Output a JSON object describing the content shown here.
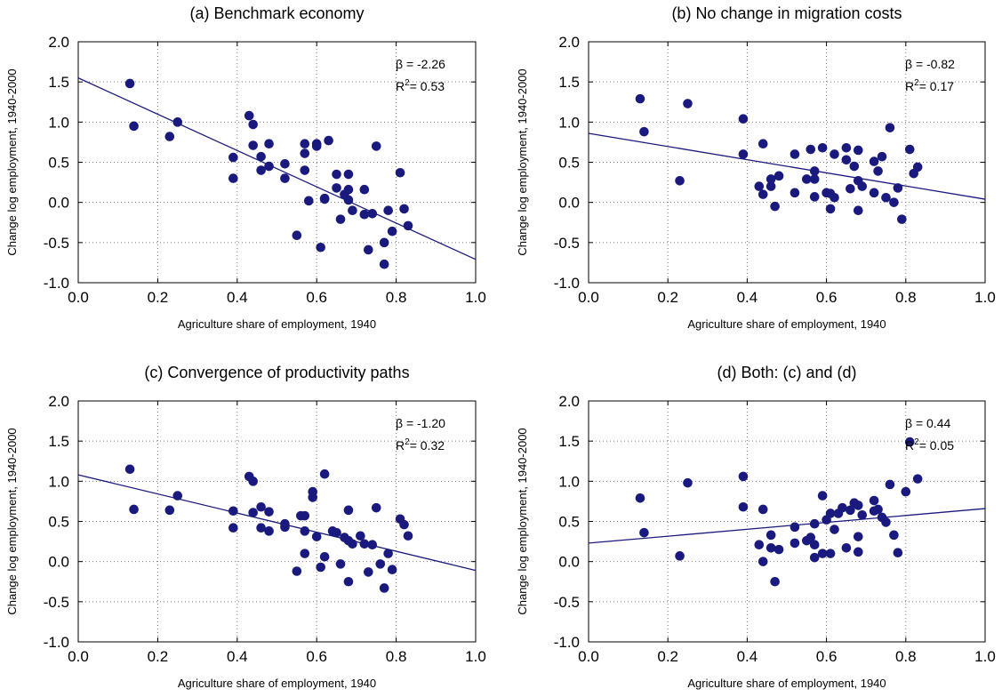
{
  "chart_data": [
    {
      "type": "scatter",
      "title": "(a) Benchmark economy",
      "xlabel": "Agriculture share of employment, 1940",
      "ylabel": "Change log employment, 1940-2000",
      "xlim": [
        0.0,
        1.0
      ],
      "ylim": [
        -1.0,
        2.0
      ],
      "xticks": [
        "0.0",
        "0.2",
        "0.4",
        "0.6",
        "0.8",
        "1.0"
      ],
      "yticks": [
        "-1.0",
        "-0.5",
        "0.0",
        "0.5",
        "1.0",
        "1.5",
        "2.0"
      ],
      "grid": true,
      "stats": {
        "beta": "-2.26",
        "r2": "0.53"
      },
      "fit": {
        "x": [
          0.0,
          1.0
        ],
        "y": [
          1.55,
          -0.71
        ]
      },
      "points": [
        [
          0.13,
          1.48
        ],
        [
          0.14,
          0.95
        ],
        [
          0.23,
          0.82
        ],
        [
          0.25,
          1.0
        ],
        [
          0.39,
          0.56
        ],
        [
          0.39,
          0.3
        ],
        [
          0.43,
          1.08
        ],
        [
          0.44,
          0.97
        ],
        [
          0.44,
          0.71
        ],
        [
          0.46,
          0.57
        ],
        [
          0.46,
          0.4
        ],
        [
          0.48,
          0.73
        ],
        [
          0.48,
          0.45
        ],
        [
          0.52,
          0.48
        ],
        [
          0.52,
          0.3
        ],
        [
          0.55,
          -0.41
        ],
        [
          0.57,
          0.73
        ],
        [
          0.57,
          0.61
        ],
        [
          0.57,
          0.4
        ],
        [
          0.58,
          0.02
        ],
        [
          0.6,
          0.73
        ],
        [
          0.6,
          0.7
        ],
        [
          0.61,
          -0.56
        ],
        [
          0.62,
          0.04
        ],
        [
          0.62,
          0.05
        ],
        [
          0.63,
          0.77
        ],
        [
          0.65,
          0.35
        ],
        [
          0.65,
          0.18
        ],
        [
          0.66,
          -0.21
        ],
        [
          0.67,
          0.1
        ],
        [
          0.68,
          0.35
        ],
        [
          0.68,
          0.16
        ],
        [
          0.68,
          0.03
        ],
        [
          0.69,
          -0.1
        ],
        [
          0.72,
          0.16
        ],
        [
          0.72,
          -0.15
        ],
        [
          0.73,
          -0.59
        ],
        [
          0.74,
          -0.14
        ],
        [
          0.75,
          0.7
        ],
        [
          0.77,
          -0.5
        ],
        [
          0.77,
          -0.77
        ],
        [
          0.78,
          -0.1
        ],
        [
          0.79,
          -0.36
        ],
        [
          0.81,
          0.37
        ],
        [
          0.82,
          -0.08
        ],
        [
          0.83,
          -0.29
        ]
      ]
    },
    {
      "type": "scatter",
      "title": "(b) No change in migration costs",
      "xlabel": "Agriculture share of employment, 1940",
      "ylabel": "Change log employment, 1940-2000",
      "xlim": [
        0.0,
        1.0
      ],
      "ylim": [
        -1.0,
        2.0
      ],
      "xticks": [
        "0.0",
        "0.2",
        "0.4",
        "0.6",
        "0.8",
        "1.0"
      ],
      "yticks": [
        "-1.0",
        "-0.5",
        "0.0",
        "0.5",
        "1.0",
        "1.5",
        "2.0"
      ],
      "grid": true,
      "stats": {
        "beta": "-0.82",
        "r2": "0.17"
      },
      "fit": {
        "x": [
          0.0,
          1.0
        ],
        "y": [
          0.86,
          0.04
        ]
      },
      "points": [
        [
          0.13,
          1.29
        ],
        [
          0.14,
          0.88
        ],
        [
          0.23,
          0.27
        ],
        [
          0.25,
          1.23
        ],
        [
          0.39,
          1.04
        ],
        [
          0.39,
          0.6
        ],
        [
          0.43,
          0.2
        ],
        [
          0.44,
          0.73
        ],
        [
          0.44,
          0.1
        ],
        [
          0.46,
          0.29
        ],
        [
          0.46,
          0.2
        ],
        [
          0.47,
          -0.05
        ],
        [
          0.48,
          0.33
        ],
        [
          0.52,
          0.6
        ],
        [
          0.52,
          0.12
        ],
        [
          0.55,
          0.29
        ],
        [
          0.56,
          0.66
        ],
        [
          0.57,
          0.39
        ],
        [
          0.57,
          0.29
        ],
        [
          0.57,
          0.07
        ],
        [
          0.59,
          0.68
        ],
        [
          0.6,
          0.12
        ],
        [
          0.61,
          0.11
        ],
        [
          0.61,
          -0.08
        ],
        [
          0.62,
          0.6
        ],
        [
          0.62,
          0.06
        ],
        [
          0.65,
          0.68
        ],
        [
          0.65,
          0.53
        ],
        [
          0.66,
          0.17
        ],
        [
          0.67,
          0.45
        ],
        [
          0.68,
          0.65
        ],
        [
          0.68,
          0.27
        ],
        [
          0.68,
          -0.1
        ],
        [
          0.69,
          0.2
        ],
        [
          0.72,
          0.51
        ],
        [
          0.72,
          0.12
        ],
        [
          0.73,
          0.39
        ],
        [
          0.74,
          0.57
        ],
        [
          0.75,
          0.06
        ],
        [
          0.76,
          0.93
        ],
        [
          0.77,
          0.0
        ],
        [
          0.78,
          0.18
        ],
        [
          0.79,
          -0.21
        ],
        [
          0.81,
          0.66
        ],
        [
          0.82,
          0.36
        ],
        [
          0.83,
          0.44
        ]
      ]
    },
    {
      "type": "scatter",
      "title": "(c) Convergence of productivity paths",
      "xlabel": "Agriculture share of employment, 1940",
      "ylabel": "Change log employment, 1940-2000",
      "xlim": [
        0.0,
        1.0
      ],
      "ylim": [
        -1.0,
        2.0
      ],
      "xticks": [
        "0.0",
        "0.2",
        "0.4",
        "0.6",
        "0.8",
        "1.0"
      ],
      "yticks": [
        "-1.0",
        "-0.5",
        "0.0",
        "0.5",
        "1.0",
        "1.5",
        "2.0"
      ],
      "grid": true,
      "stats": {
        "beta": "-1.20",
        "r2": "0.32"
      },
      "fit": {
        "x": [
          0.0,
          1.0
        ],
        "y": [
          1.08,
          -0.11
        ]
      },
      "points": [
        [
          0.13,
          1.15
        ],
        [
          0.14,
          0.65
        ],
        [
          0.23,
          0.64
        ],
        [
          0.25,
          0.82
        ],
        [
          0.39,
          0.63
        ],
        [
          0.39,
          0.42
        ],
        [
          0.43,
          1.06
        ],
        [
          0.44,
          1.0
        ],
        [
          0.44,
          0.61
        ],
        [
          0.46,
          0.68
        ],
        [
          0.46,
          0.42
        ],
        [
          0.48,
          0.62
        ],
        [
          0.48,
          0.38
        ],
        [
          0.52,
          0.47
        ],
        [
          0.52,
          0.43
        ],
        [
          0.55,
          -0.12
        ],
        [
          0.56,
          0.57
        ],
        [
          0.57,
          0.57
        ],
        [
          0.57,
          0.38
        ],
        [
          0.57,
          0.1
        ],
        [
          0.59,
          0.87
        ],
        [
          0.59,
          0.8
        ],
        [
          0.6,
          0.31
        ],
        [
          0.61,
          -0.07
        ],
        [
          0.62,
          1.09
        ],
        [
          0.62,
          0.06
        ],
        [
          0.64,
          0.38
        ],
        [
          0.65,
          0.36
        ],
        [
          0.66,
          -0.03
        ],
        [
          0.67,
          0.3
        ],
        [
          0.68,
          0.64
        ],
        [
          0.68,
          0.26
        ],
        [
          0.68,
          -0.25
        ],
        [
          0.69,
          0.22
        ],
        [
          0.71,
          0.32
        ],
        [
          0.72,
          0.22
        ],
        [
          0.73,
          -0.13
        ],
        [
          0.74,
          0.21
        ],
        [
          0.75,
          0.67
        ],
        [
          0.76,
          -0.03
        ],
        [
          0.77,
          -0.33
        ],
        [
          0.78,
          0.1
        ],
        [
          0.79,
          -0.1
        ],
        [
          0.81,
          0.53
        ],
        [
          0.82,
          0.46
        ],
        [
          0.83,
          0.32
        ]
      ]
    },
    {
      "type": "scatter",
      "title": "(d) Both: (c) and (d)",
      "xlabel": "Agriculture share of employment, 1940",
      "ylabel": "Change log employment, 1940-2000",
      "xlim": [
        0.0,
        1.0
      ],
      "ylim": [
        -1.0,
        2.0
      ],
      "xticks": [
        "0.0",
        "0.2",
        "0.4",
        "0.6",
        "0.8",
        "1.0"
      ],
      "yticks": [
        "-1.0",
        "-0.5",
        "0.0",
        "0.5",
        "1.0",
        "1.5",
        "2.0"
      ],
      "grid": true,
      "stats": {
        "beta": "0.44",
        "r2": "0.05"
      },
      "fit": {
        "x": [
          0.0,
          1.0
        ],
        "y": [
          0.23,
          0.66
        ]
      },
      "points": [
        [
          0.13,
          0.79
        ],
        [
          0.14,
          0.36
        ],
        [
          0.23,
          0.07
        ],
        [
          0.25,
          0.98
        ],
        [
          0.39,
          1.06
        ],
        [
          0.39,
          0.68
        ],
        [
          0.43,
          0.21
        ],
        [
          0.44,
          0.65
        ],
        [
          0.44,
          0.0
        ],
        [
          0.46,
          0.33
        ],
        [
          0.46,
          0.17
        ],
        [
          0.47,
          -0.25
        ],
        [
          0.48,
          0.15
        ],
        [
          0.52,
          0.43
        ],
        [
          0.52,
          0.23
        ],
        [
          0.55,
          0.26
        ],
        [
          0.56,
          0.3
        ],
        [
          0.57,
          0.47
        ],
        [
          0.57,
          0.21
        ],
        [
          0.57,
          0.05
        ],
        [
          0.59,
          0.82
        ],
        [
          0.59,
          0.1
        ],
        [
          0.6,
          0.52
        ],
        [
          0.61,
          0.1
        ],
        [
          0.61,
          0.6
        ],
        [
          0.62,
          0.4
        ],
        [
          0.63,
          0.6
        ],
        [
          0.64,
          0.67
        ],
        [
          0.65,
          0.17
        ],
        [
          0.66,
          0.64
        ],
        [
          0.67,
          0.73
        ],
        [
          0.68,
          0.7
        ],
        [
          0.68,
          0.31
        ],
        [
          0.68,
          0.12
        ],
        [
          0.69,
          0.58
        ],
        [
          0.72,
          0.76
        ],
        [
          0.72,
          0.63
        ],
        [
          0.73,
          0.65
        ],
        [
          0.74,
          0.55
        ],
        [
          0.75,
          0.49
        ],
        [
          0.76,
          0.96
        ],
        [
          0.77,
          0.33
        ],
        [
          0.78,
          0.11
        ],
        [
          0.8,
          0.87
        ],
        [
          0.81,
          1.49
        ],
        [
          0.83,
          1.03
        ]
      ]
    }
  ],
  "colors": {
    "marker": "#1a1a7e",
    "fit_line": "#1a1a7e",
    "grid": "#777777",
    "axis": "#000000"
  }
}
